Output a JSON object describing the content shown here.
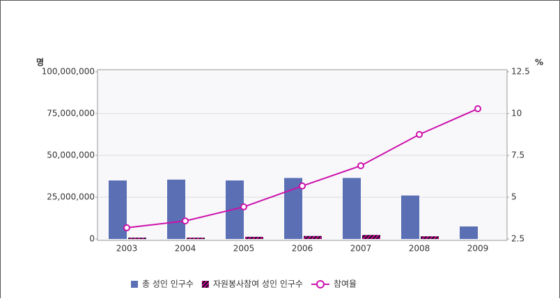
{
  "chart_data": {
    "type": "bar",
    "y_label": "명",
    "y2_label": "%",
    "categories": [
      "2003",
      "2004",
      "2005",
      "2006",
      "2007",
      "2008",
      "2009"
    ],
    "series": [
      {
        "name": "총 성인 인구수",
        "color": "#5b6fb5",
        "values": [
          35000000,
          35500000,
          35000000,
          36500000,
          36500000,
          26000000,
          7500000
        ]
      },
      {
        "name": "자원봉사참여 성인 인구수",
        "color": "#cc0099",
        "values": [
          800000,
          800000,
          1300000,
          1800000,
          2400000,
          1600000,
          null
        ]
      },
      {
        "name": "참여율",
        "type": "line",
        "axis": "y2",
        "color": "#cc11aa",
        "values": [
          3.17,
          3.58,
          4.42,
          5.67,
          6.88,
          8.75,
          10.29
        ]
      }
    ],
    "ylim": [
      0,
      100000000
    ],
    "yticks": [
      {
        "value": 0,
        "label": "0"
      },
      {
        "value": 25000000,
        "label": "25,000,000"
      },
      {
        "value": 50000000,
        "label": "50,000,000"
      },
      {
        "value": 75000000,
        "label": "75,000,000"
      },
      {
        "value": 100000000,
        "label": "100,000,000"
      }
    ],
    "y2lim": [
      2.5,
      12.5
    ],
    "y2ticks": [
      2.5,
      5,
      7.5,
      10,
      12.5
    ],
    "grid": true,
    "legend": "bottom"
  }
}
